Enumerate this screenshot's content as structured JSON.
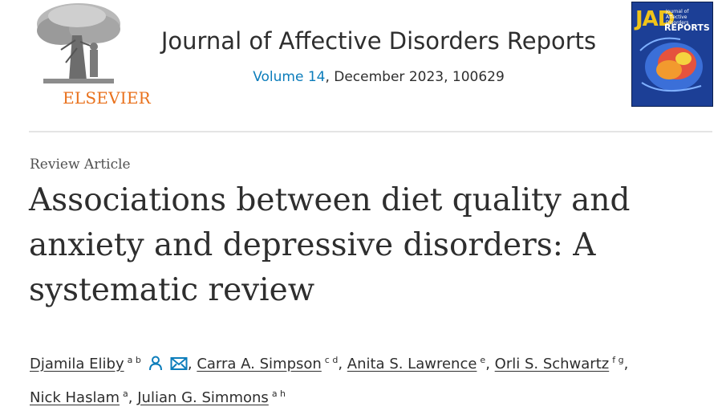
{
  "header": {
    "publisher": "ELSEVIER",
    "journal_title": "Journal of Affective Disorders Reports",
    "volume_label": "Volume 14",
    "issue_rest": ", December 2023, 100629",
    "cover": {
      "title": "JAD",
      "subtitle": "Journal of Affective Disorders",
      "reports": "REPORTS"
    }
  },
  "article": {
    "type": "Review Article",
    "title": "Associations between diet quality and anxiety and depressive disorders: A systematic review"
  },
  "authors": [
    {
      "name": "Djamila Eliby",
      "affiliations": "a b",
      "has_person_icon": true,
      "has_email_icon": true
    },
    {
      "name": "Carra A. Simpson",
      "affiliations": "c d"
    },
    {
      "name": "Anita S. Lawrence",
      "affiliations": "e"
    },
    {
      "name": "Orli S. Schwartz",
      "affiliations": "f g"
    },
    {
      "name": "Nick Haslam",
      "affiliations": "a"
    },
    {
      "name": "Julian G. Simmons",
      "affiliations": "a h"
    }
  ],
  "colors": {
    "publisher_orange": "#e9711c",
    "link_blue": "#0c7dbb",
    "text": "#2e2e2e"
  },
  "icons": [
    "elsevier-tree-icon",
    "person-icon",
    "email-icon"
  ]
}
